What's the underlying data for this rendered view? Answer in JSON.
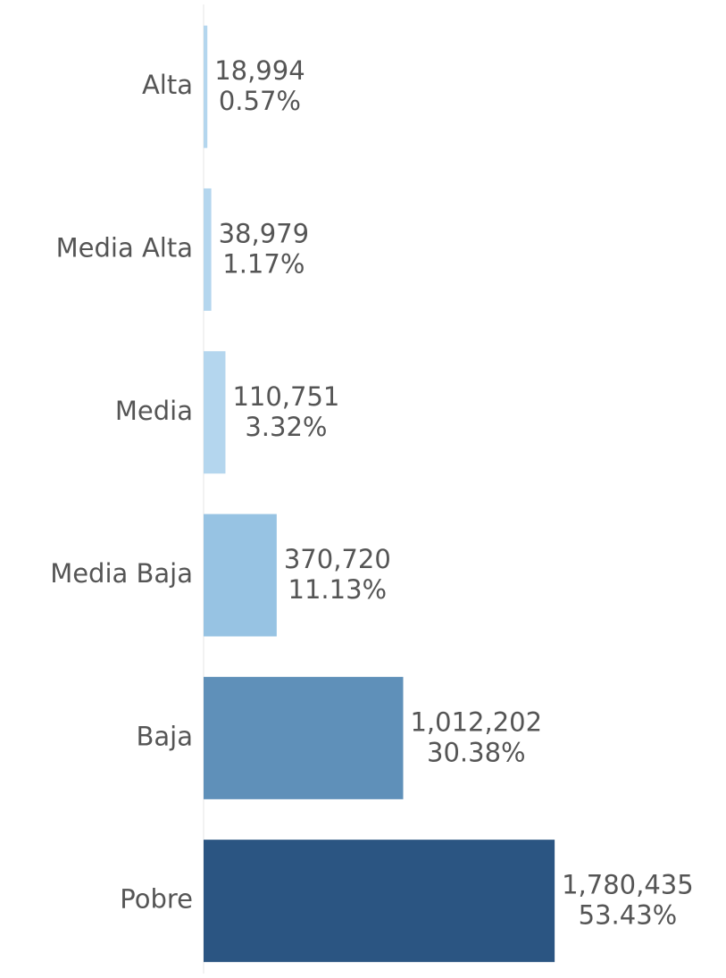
{
  "chart_data": {
    "type": "barh",
    "categories": [
      "Alta",
      "Media Alta",
      "Media",
      "Media Baja",
      "Baja",
      "Pobre"
    ],
    "values": [
      18994,
      38979,
      110751,
      370720,
      1012202,
      1780435
    ],
    "value_labels": [
      "18,994",
      "38,979",
      "110,751",
      "370,720",
      "1,012,202",
      "1,780,435"
    ],
    "share_labels": [
      "0.57%",
      "1.17%",
      "3.32%",
      "11.13%",
      "30.38%",
      "53.43%"
    ],
    "colors": [
      "#b4d6ee",
      "#b4d6ee",
      "#b4d6ee",
      "#97c3e3",
      "#5f90b9",
      "#2b5582"
    ],
    "xlim": [
      0,
      2500000
    ]
  }
}
